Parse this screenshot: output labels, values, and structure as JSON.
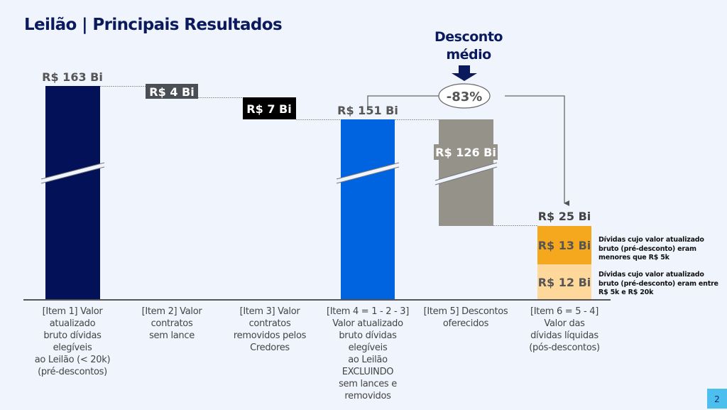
{
  "header": {
    "title": "Leilão | Principais Resultados"
  },
  "callout": {
    "title_line1": "Desconto",
    "title_line2": "médio",
    "value": "-83%"
  },
  "notes": {
    "orange": [
      "Dívidas cujo valor atualizado",
      "bruto (pré-desconto) eram",
      "menores que R$ 5k"
    ],
    "light": [
      "Dívidas cujo valor atualizado",
      "bruto (pré-desconto) eram entre",
      "R$ 5k e R$ 20k"
    ]
  },
  "page_number": "2",
  "colors": {
    "item1": "#031158",
    "item2_label_bg": "#4a4f55",
    "item3_label_bg": "#000000",
    "item4": "#0063e0",
    "item5": "#949289",
    "item6a": "#f5a71d",
    "item6b": "#fdd89a",
    "title": "#0b1a5c"
  },
  "chart_data": {
    "type": "bar",
    "subtype": "waterfall",
    "title": "Leilão | Principais Resultados",
    "unit": "R$ Bi",
    "categories": [
      [
        "[Item 1] Valor",
        "atualizado",
        "bruto dívidas",
        "elegíveis",
        "ao Leilão (< 20k)",
        "(pré-descontos)"
      ],
      [
        "[Item 2] Valor",
        "contratos",
        "sem lance"
      ],
      [
        "[Item 3] Valor",
        "contratos",
        "removidos pelos",
        "Credores"
      ],
      [
        "[Item 4 = 1 - 2 - 3]",
        "Valor atualizado",
        "bruto dívidas",
        "elegíveis",
        "ao Leilão",
        "EXCLUINDO",
        "sem lances e",
        "removidos"
      ],
      [
        "[Item 5] Descontos",
        "oferecidos"
      ],
      [
        "[Item 6 = 5 - 4]",
        "Valor das",
        "dívidas líquidas",
        "(pós-descontos)"
      ]
    ],
    "values": [
      163,
      4,
      7,
      151,
      126,
      25
    ],
    "labels": [
      "R$ 163 Bi",
      "R$ 4 Bi",
      "R$ 7 Bi",
      "R$ 151 Bi",
      "R$ 126 Bi",
      "R$ 25 Bi"
    ],
    "stack_item6": [
      {
        "name": "menores que R$ 5k",
        "value": 13,
        "label": "R$ 13 Bi"
      },
      {
        "name": "entre R$ 5k e R$ 20k",
        "value": 12,
        "label": "R$ 12 Bi"
      }
    ],
    "axis_break": true,
    "grid": false,
    "legend": "none"
  }
}
